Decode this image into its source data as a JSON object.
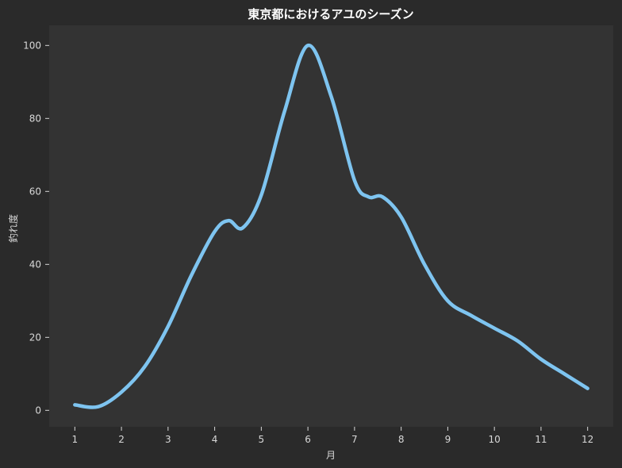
{
  "chart_data": {
    "type": "line",
    "title": "東京都におけるアユのシーズン",
    "xlabel": "月",
    "ylabel": "釣れ度",
    "x": [
      1,
      1.5,
      2,
      2.5,
      3,
      3.5,
      4,
      4.3,
      4.6,
      5,
      5.5,
      6,
      6.5,
      7,
      7.3,
      7.6,
      8,
      8.5,
      9,
      9.5,
      10,
      10.5,
      11,
      11.5,
      12
    ],
    "series": [
      {
        "values": [
          1.5,
          1,
          5,
          12,
          23,
          37,
          49,
          52,
          50,
          59,
          82,
          100,
          86,
          63,
          58.5,
          58.5,
          53,
          40,
          30,
          26,
          22.5,
          19,
          14,
          10,
          6
        ]
      }
    ],
    "xticks": [
      "1",
      "2",
      "3",
      "4",
      "5",
      "6",
      "7",
      "8",
      "9",
      "10",
      "11",
      "12"
    ],
    "yticks": [
      "0",
      "20",
      "40",
      "60",
      "80",
      "100"
    ],
    "xlim": [
      0.45,
      12.55
    ],
    "ylim": [
      -4.5,
      105.5
    ],
    "grid": false,
    "colors": {
      "background": "#2a2a2a",
      "plot_area": "#333333",
      "line": "#7ec4f0",
      "text": "#d8d8d8",
      "title": "#ffffff"
    }
  }
}
